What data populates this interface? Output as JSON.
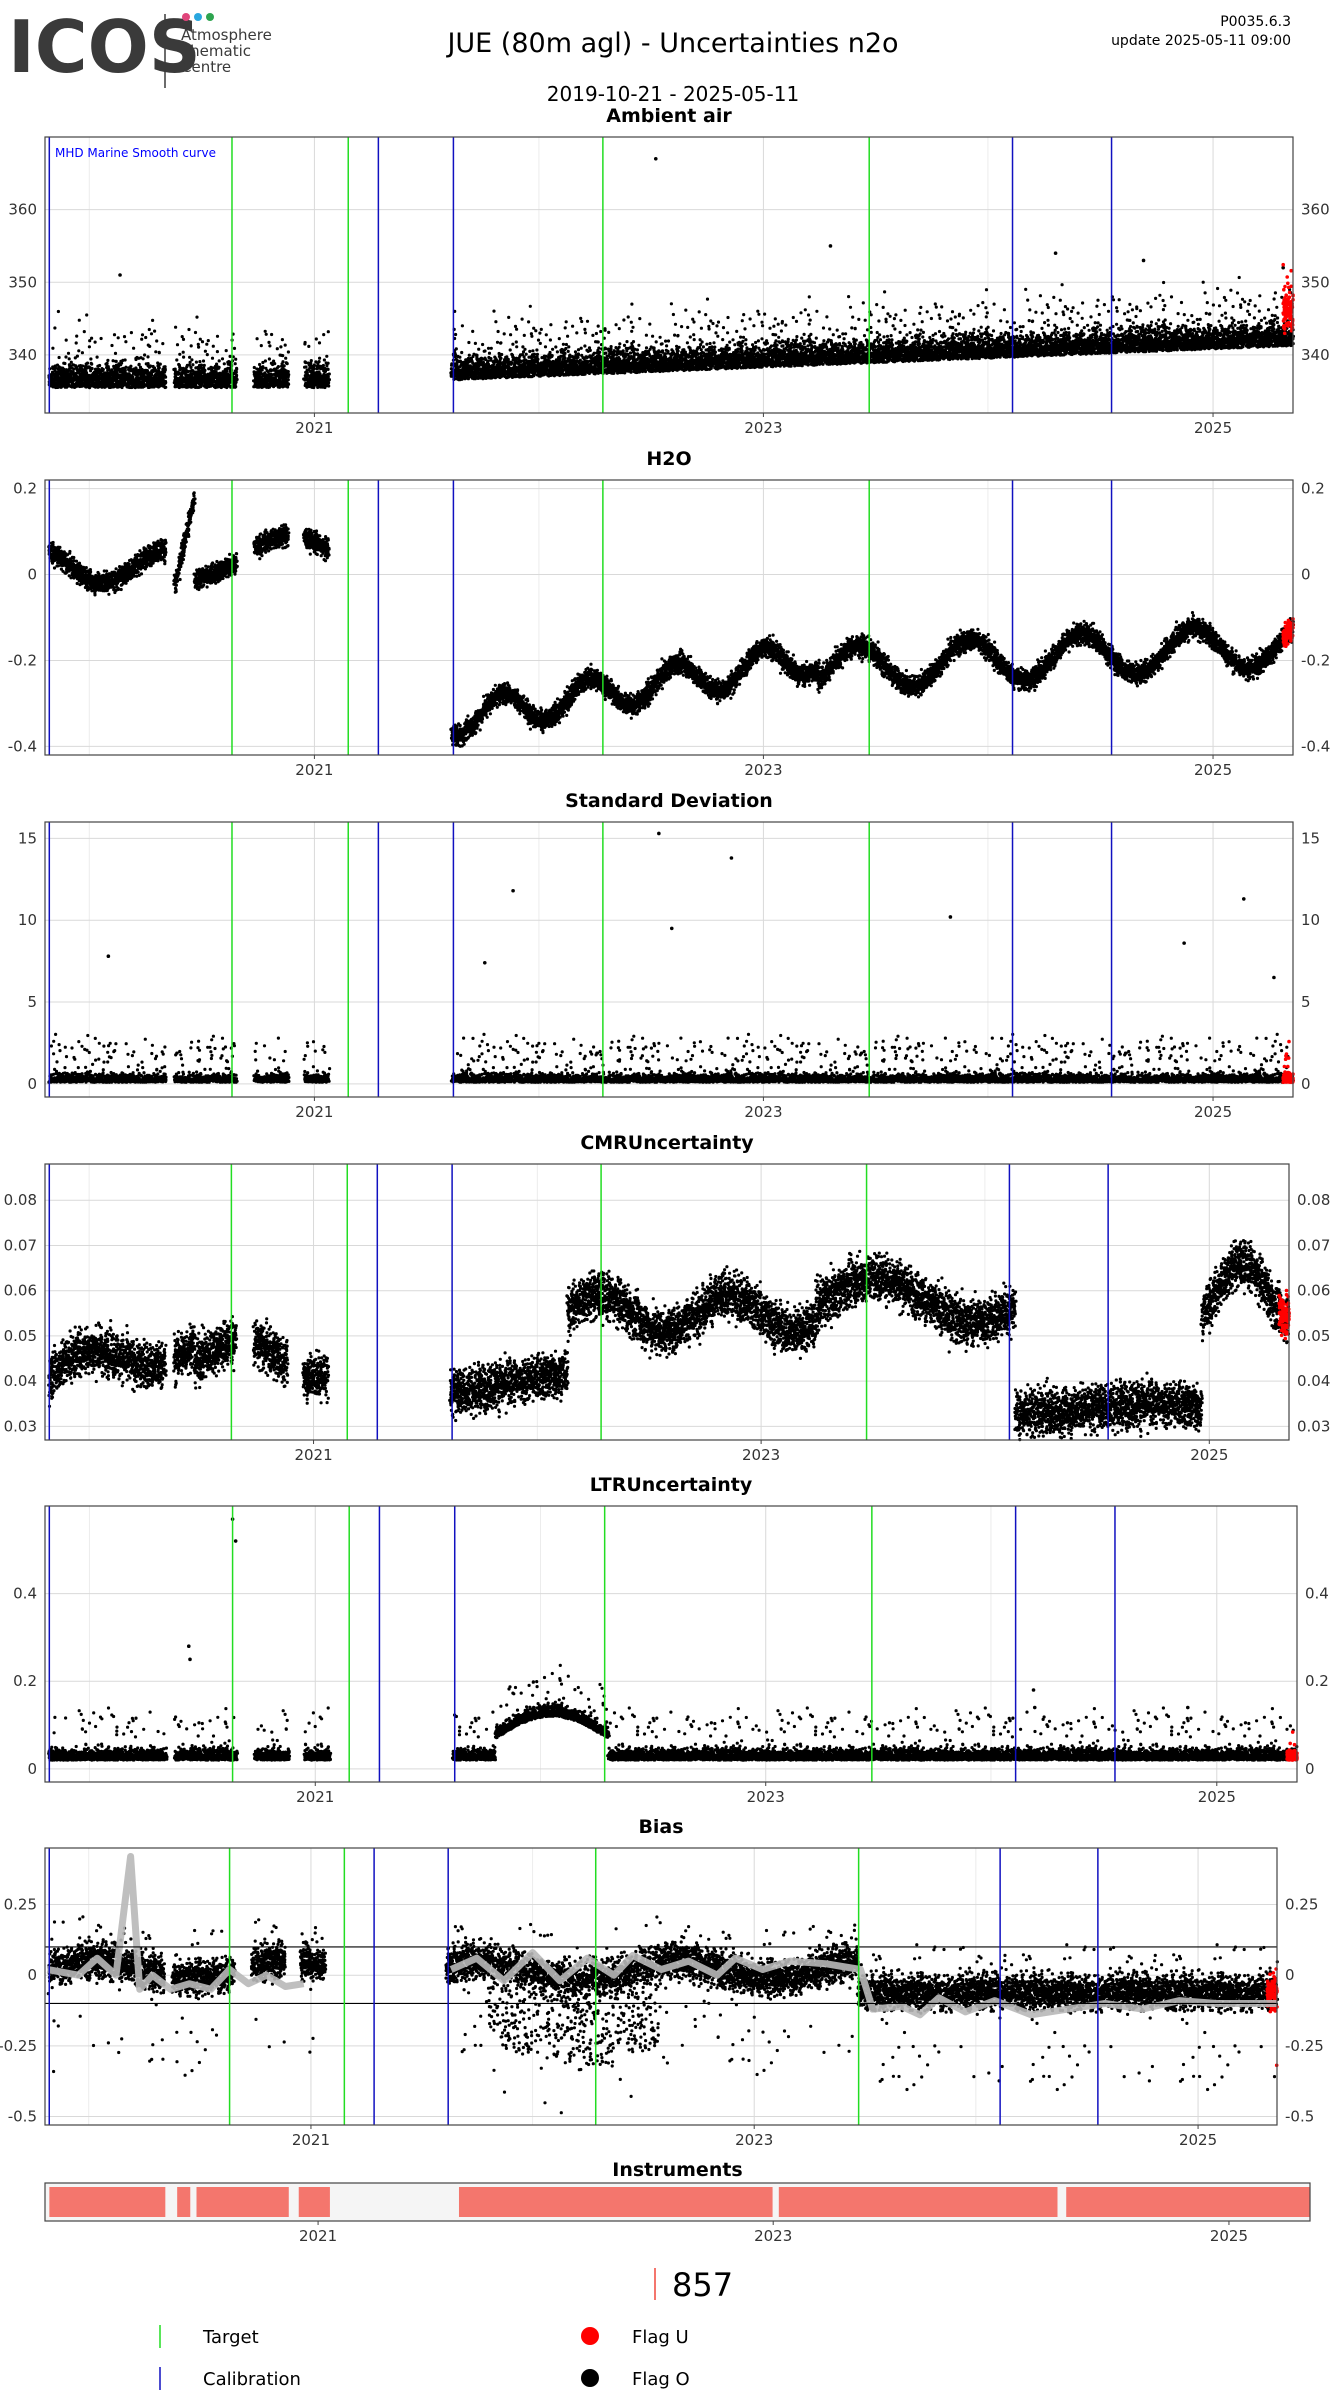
{
  "header": {
    "logo_text": "ICOS",
    "logo_sub": [
      "Atmosphere",
      "Thematic",
      "Centre"
    ],
    "logo_dot_colors": [
      "#e0457b",
      "#2aa7df",
      "#2ea44f"
    ],
    "title": "JUE  (80m agl) - Uncertainties n2o",
    "date_range": "2019-10-21 - 2025-05-11",
    "version": "P0035.6.3",
    "update": "update  2025-05-11 09:00"
  },
  "colors": {
    "target": "#22dd22",
    "calibration": "#1010c0",
    "flag_u": "#ff0000",
    "flag_o": "#000000",
    "mean_line": "#b8b8b8",
    "instrument": "#f4766d",
    "annotation": "#0000ff"
  },
  "x_axis": {
    "date_start": "2019-10-21",
    "date_end": "2025-05-11",
    "tick_labels": [
      "2021",
      "2023",
      "2025"
    ],
    "tick_dates": [
      "2021-01-01",
      "2023-01-01",
      "2025-01-01"
    ]
  },
  "target_dates": [
    "2020-08-20",
    "2021-02-25",
    "2022-04-15",
    "2023-06-22"
  ],
  "calibration_dates": [
    "2019-10-28",
    "2021-04-15",
    "2021-08-15",
    "2024-02-10",
    "2024-07-20"
  ],
  "chart_data": [
    {
      "type": "scatter",
      "title": "Ambient air",
      "annotation": "MHD Marine Smooth curve",
      "yticks": [
        340,
        350,
        360
      ],
      "ylim": [
        332,
        370
      ],
      "right_axis": true,
      "outliers": [
        [
          "2022-07-10",
          367
        ],
        [
          "2020-02-20",
          351
        ],
        [
          "2023-04-20",
          355
        ],
        [
          "2024-04-20",
          354
        ],
        [
          "2024-09-10",
          353
        ],
        [
          "2025-04-25",
          352
        ]
      ]
    },
    {
      "type": "scatter",
      "title": "H2O",
      "yticks": [
        -0.4,
        -0.2,
        0.0,
        0.2
      ],
      "ylim": [
        -0.42,
        0.22
      ],
      "right_axis": true
    },
    {
      "type": "scatter",
      "title": "Standard Deviation",
      "yticks": [
        0,
        5,
        10,
        15
      ],
      "ylim": [
        -0.8,
        16
      ],
      "right_axis": true,
      "outliers": [
        [
          "2022-07-15",
          15.3
        ],
        [
          "2022-11-10",
          13.8
        ],
        [
          "2021-11-20",
          11.8
        ],
        [
          "2025-02-20",
          11.3
        ],
        [
          "2023-11-01",
          10.2
        ],
        [
          "2024-11-15",
          8.6
        ],
        [
          "2022-08-05",
          9.5
        ],
        [
          "2021-10-05",
          7.4
        ],
        [
          "2020-02-01",
          7.8
        ],
        [
          "2025-04-10",
          6.5
        ]
      ]
    },
    {
      "type": "scatter",
      "title": "CMRUncertainty",
      "yticks": [
        0.03,
        0.04,
        0.05,
        0.06,
        0.07,
        0.08
      ],
      "ylim": [
        0.027,
        0.088
      ],
      "right_axis": true
    },
    {
      "type": "scatter",
      "title": "LTRUncertainty",
      "yticks": [
        0.0,
        0.2,
        0.4
      ],
      "ylim": [
        -0.03,
        0.6
      ],
      "right_axis": true,
      "outliers": [
        [
          "2020-08-20",
          0.57
        ],
        [
          "2020-08-25",
          0.52
        ],
        [
          "2020-06-10",
          0.28
        ],
        [
          "2020-06-12",
          0.25
        ],
        [
          "2024-03-10",
          0.18
        ],
        [
          "2024-03-12",
          0.14
        ],
        [
          "2024-11-15",
          0.14
        ]
      ]
    },
    {
      "type": "scatter",
      "title": "Bias",
      "yticks": [
        -0.5,
        -0.25,
        0.0,
        0.25
      ],
      "ylim": [
        -0.53,
        0.45
      ],
      "right_axis": true,
      "hlines": [
        0.1,
        -0.1
      ],
      "mean_curve": [
        [
          "2019-10-25",
          0.02
        ],
        [
          "2019-12-15",
          0.0
        ],
        [
          "2020-01-15",
          0.06
        ],
        [
          "2020-02-15",
          0.0
        ],
        [
          "2020-03-10",
          0.42
        ],
        [
          "2020-03-25",
          -0.05
        ],
        [
          "2020-04-15",
          0.0
        ],
        [
          "2020-05-15",
          -0.05
        ],
        [
          "2020-06-15",
          -0.03
        ],
        [
          "2020-07-20",
          -0.05
        ],
        [
          "2020-08-20",
          0.02
        ],
        [
          "2020-09-20",
          -0.03
        ],
        [
          "2020-10-20",
          0.0
        ],
        [
          "2020-11-20",
          -0.04
        ],
        [
          "2020-12-20",
          -0.03
        ],
        [
          "2021-08-20",
          0.02
        ],
        [
          "2021-10-01",
          0.06
        ],
        [
          "2021-11-15",
          -0.02
        ],
        [
          "2022-01-01",
          0.08
        ],
        [
          "2022-02-15",
          -0.02
        ],
        [
          "2022-04-01",
          0.06
        ],
        [
          "2022-05-15",
          0.0
        ],
        [
          "2022-06-15",
          0.07
        ],
        [
          "2022-08-01",
          0.02
        ],
        [
          "2022-09-15",
          0.05
        ],
        [
          "2022-11-01",
          0.0
        ],
        [
          "2022-12-01",
          0.06
        ],
        [
          "2023-01-15",
          0.02
        ],
        [
          "2023-03-01",
          0.05
        ],
        [
          "2023-05-01",
          0.04
        ],
        [
          "2023-06-25",
          0.02
        ],
        [
          "2023-07-15",
          -0.12
        ],
        [
          "2023-09-01",
          -0.11
        ],
        [
          "2023-10-01",
          -0.14
        ],
        [
          "2023-11-01",
          -0.08
        ],
        [
          "2023-12-15",
          -0.13
        ],
        [
          "2024-02-01",
          -0.09
        ],
        [
          "2024-04-01",
          -0.14
        ],
        [
          "2024-06-01",
          -0.12
        ],
        [
          "2024-08-01",
          -0.1
        ],
        [
          "2024-10-01",
          -0.12
        ],
        [
          "2024-12-01",
          -0.09
        ],
        [
          "2025-02-01",
          -0.1
        ],
        [
          "2025-05-10",
          -0.1
        ]
      ]
    },
    {
      "type": "bar",
      "title": "Instruments",
      "segments": [
        [
          "2019-10-28",
          "2020-05-01"
        ],
        [
          "2020-05-20",
          "2020-06-10"
        ],
        [
          "2020-06-20",
          "2020-11-15"
        ],
        [
          "2020-12-01",
          "2021-01-20"
        ],
        [
          "2021-08-15",
          "2022-12-31"
        ],
        [
          "2023-01-10",
          "2024-04-01"
        ],
        [
          "2024-04-15",
          "2025-05-11"
        ]
      ]
    }
  ],
  "instrument_label": "857",
  "legend": {
    "target_label": "Target",
    "calibration_label": "Calibration",
    "flag_u_label": "Flag U",
    "flag_o_label": "Flag O"
  }
}
